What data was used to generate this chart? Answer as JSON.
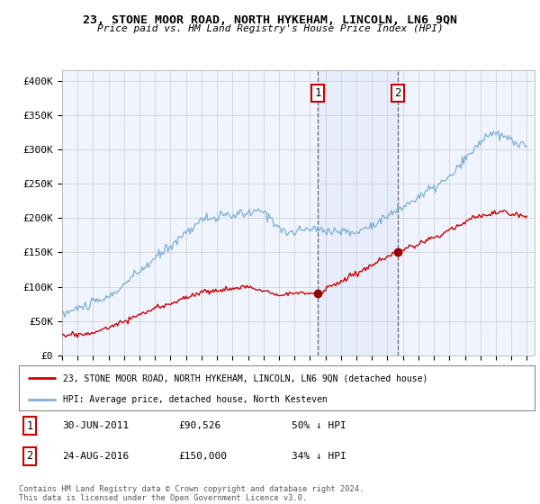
{
  "title": "23, STONE MOOR ROAD, NORTH HYKEHAM, LINCOLN, LN6 9QN",
  "subtitle": "Price paid vs. HM Land Registry's House Price Index (HPI)",
  "ylabel_ticks": [
    "£0",
    "£50K",
    "£100K",
    "£150K",
    "£200K",
    "£250K",
    "£300K",
    "£350K",
    "£400K"
  ],
  "ytick_values": [
    0,
    50000,
    100000,
    150000,
    200000,
    250000,
    300000,
    350000,
    400000
  ],
  "ylim": [
    0,
    415000
  ],
  "xlim_start": 1995.0,
  "xlim_end": 2025.5,
  "hpi_color": "#7bafd4",
  "price_color": "#cc0000",
  "vline_color": "#888888",
  "sale1_date": 2011.5,
  "sale1_price": 90526,
  "sale2_date": 2016.65,
  "sale2_price": 150000,
  "background_plot": "#f0f4ff",
  "background_fig": "#ffffff",
  "legend_label_price": "23, STONE MOOR ROAD, NORTH HYKEHAM, LINCOLN, LN6 9QN (detached house)",
  "legend_label_hpi": "HPI: Average price, detached house, North Kesteven",
  "note1_label": "1",
  "note1_date": "30-JUN-2011",
  "note1_price": "£90,526",
  "note1_pct": "50% ↓ HPI",
  "note2_label": "2",
  "note2_date": "24-AUG-2016",
  "note2_price": "£150,000",
  "note2_pct": "34% ↓ HPI",
  "footer": "Contains HM Land Registry data © Crown copyright and database right 2024.\nThis data is licensed under the Open Government Licence v3.0."
}
